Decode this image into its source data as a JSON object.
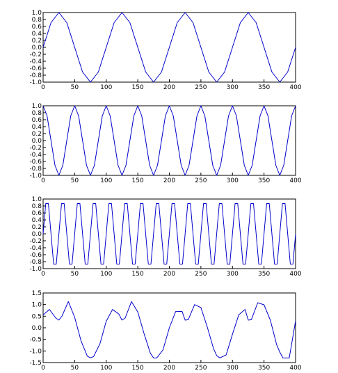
{
  "chart_data": [
    {
      "type": "line",
      "title": "",
      "xlabel": "",
      "ylabel": "",
      "xlim": [
        0,
        400
      ],
      "ylim": [
        -1.0,
        1.0
      ],
      "xticks": [
        0,
        50,
        100,
        150,
        200,
        250,
        300,
        350,
        400
      ],
      "xtick_labels": [
        "0",
        "50",
        "100",
        "150",
        "200",
        "250",
        "300",
        "350",
        "400"
      ],
      "yticks": [
        -1.0,
        -0.8,
        -0.6,
        -0.4,
        -0.2,
        0.0,
        0.2,
        0.4,
        0.6,
        0.8,
        1.0
      ],
      "ytick_labels": [
        "-1.0",
        "-0.8",
        "-0.6",
        "-0.4",
        "-0.2",
        "0.0",
        "0.2",
        "0.4",
        "0.6",
        "0.8",
        "1.0"
      ],
      "grid": false,
      "color": "#0000cc",
      "x": [
        0,
        12.5,
        25,
        37.5,
        50,
        62.5,
        75,
        87.5,
        100,
        112.5,
        125,
        137.5,
        150,
        162.5,
        175,
        187.5,
        200,
        212.5,
        225,
        237.5,
        250,
        262.5,
        275,
        287.5,
        300,
        312.5,
        325,
        337.5,
        350,
        362.5,
        375,
        387.5,
        400
      ],
      "series": [
        {
          "values": [
            0,
            0.71,
            1,
            0.71,
            0,
            -0.71,
            -1,
            -0.71,
            0,
            0.71,
            1,
            0.71,
            0,
            -0.71,
            -1,
            -0.71,
            0,
            0.71,
            1,
            0.71,
            0,
            -0.71,
            -1,
            -0.71,
            0,
            0.71,
            1,
            0.71,
            0,
            -0.71,
            -1,
            -0.71,
            0
          ]
        }
      ]
    },
    {
      "type": "line",
      "title": "",
      "xlabel": "",
      "ylabel": "",
      "xlim": [
        0,
        400
      ],
      "ylim": [
        -1.0,
        1.0
      ],
      "xticks": [
        0,
        50,
        100,
        150,
        200,
        250,
        300,
        350,
        400
      ],
      "xtick_labels": [
        "0",
        "50",
        "100",
        "150",
        "200",
        "250",
        "300",
        "350",
        "400"
      ],
      "yticks": [
        -1.0,
        -0.8,
        -0.6,
        -0.4,
        -0.2,
        0.0,
        0.2,
        0.4,
        0.6,
        0.8,
        1.0
      ],
      "ytick_labels": [
        "-1.0",
        "-0.8",
        "-0.6",
        "-0.4",
        "-0.2",
        "0.0",
        "0.2",
        "0.4",
        "0.6",
        "0.8",
        "1.0"
      ],
      "grid": false,
      "color": "#0000cc",
      "x": [
        0,
        6.25,
        12.5,
        18.75,
        25,
        31.25,
        37.5,
        43.75,
        50,
        56.25,
        62.5,
        68.75,
        75,
        81.25,
        87.5,
        93.75,
        100,
        106.25,
        112.5,
        118.75,
        125,
        131.25,
        137.5,
        143.75,
        150,
        156.25,
        162.5,
        168.75,
        175,
        181.25,
        187.5,
        193.75,
        200,
        206.25,
        212.5,
        218.75,
        225,
        231.25,
        237.5,
        243.75,
        250,
        256.25,
        262.5,
        268.75,
        275,
        281.25,
        287.5,
        293.75,
        300,
        306.25,
        312.5,
        318.75,
        325,
        331.25,
        337.5,
        343.75,
        350,
        356.25,
        362.5,
        368.75,
        375,
        381.25,
        387.5,
        393.75,
        400
      ],
      "series": [
        {
          "values": [
            1,
            0.71,
            0,
            -0.71,
            -1,
            -0.71,
            0,
            0.71,
            1,
            0.71,
            0,
            -0.71,
            -1,
            -0.71,
            0,
            0.71,
            1,
            0.71,
            0,
            -0.71,
            -1,
            -0.71,
            0,
            0.71,
            1,
            0.71,
            0,
            -0.71,
            -1,
            -0.71,
            0,
            0.71,
            1,
            0.71,
            0,
            -0.71,
            -1,
            -0.71,
            0,
            0.71,
            1,
            0.71,
            0,
            -0.71,
            -1,
            -0.71,
            0,
            0.71,
            1,
            0.71,
            0,
            -0.71,
            -1,
            -0.71,
            0,
            0.71,
            1,
            0.71,
            0,
            -0.71,
            -1,
            -0.71,
            0,
            0.71,
            1
          ]
        }
      ]
    },
    {
      "type": "line",
      "title": "",
      "xlabel": "",
      "ylabel": "",
      "xlim": [
        0,
        400
      ],
      "ylim": [
        -1.0,
        1.0
      ],
      "xticks": [
        0,
        50,
        100,
        150,
        200,
        250,
        300,
        350,
        400
      ],
      "xtick_labels": [
        "0",
        "50",
        "100",
        "150",
        "200",
        "250",
        "300",
        "350",
        "400"
      ],
      "yticks": [
        -1.0,
        -0.8,
        -0.6,
        -0.4,
        -0.2,
        0.0,
        0.2,
        0.4,
        0.6,
        0.8,
        1.0
      ],
      "ytick_labels": [
        "-1.0",
        "-0.8",
        "-0.6",
        "-0.4",
        "-0.2",
        "0.0",
        "0.2",
        "0.4",
        "0.6",
        "0.8",
        "1.0"
      ],
      "grid": false,
      "color": "#0000cc",
      "x": [
        0,
        4.17,
        8.33,
        12.5,
        16.67,
        20.83,
        25,
        29.17,
        33.33,
        37.5,
        41.67,
        45.83,
        50,
        54.17,
        58.33,
        62.5,
        66.67,
        70.83,
        75,
        79.17,
        83.33,
        87.5,
        91.67,
        95.83,
        100,
        104.17,
        108.33,
        112.5,
        116.67,
        120.83,
        125,
        129.17,
        133.33,
        137.5,
        141.67,
        145.83,
        150,
        154.17,
        158.33,
        162.5,
        166.67,
        170.83,
        175,
        179.17,
        183.33,
        187.5,
        191.67,
        195.83,
        200,
        204.17,
        208.33,
        212.5,
        216.67,
        220.83,
        225,
        229.17,
        233.33,
        237.5,
        241.67,
        245.83,
        250,
        254.17,
        258.33,
        262.5,
        266.67,
        270.83,
        275,
        279.17,
        283.33,
        287.5,
        291.67,
        295.83,
        300,
        304.17,
        308.33,
        312.5,
        316.67,
        320.83,
        325,
        329.17,
        333.33,
        337.5,
        341.67,
        345.83,
        350,
        354.17,
        358.33,
        362.5,
        366.67,
        370.83,
        375,
        379.17,
        383.33,
        387.5,
        391.67,
        395.83,
        400
      ],
      "series": [
        {
          "values": [
            0,
            0.87,
            0.87,
            0,
            -0.87,
            -0.87,
            0,
            0.87,
            0.87,
            0,
            -0.87,
            -0.87,
            0,
            0.87,
            0.87,
            0,
            -0.87,
            -0.87,
            0,
            0.87,
            0.87,
            0,
            -0.87,
            -0.87,
            0,
            0.87,
            0.87,
            0,
            -0.87,
            -0.87,
            0,
            0.87,
            0.87,
            0,
            -0.87,
            -0.87,
            0,
            0.87,
            0.87,
            0,
            -0.87,
            -0.87,
            0,
            0.87,
            0.87,
            0,
            -0.87,
            -0.87,
            0,
            0.87,
            0.87,
            0,
            -0.87,
            -0.87,
            0,
            0.87,
            0.87,
            0,
            -0.87,
            -0.87,
            0,
            0.87,
            0.87,
            0,
            -0.87,
            -0.87,
            0,
            0.87,
            0.87,
            0,
            -0.87,
            -0.87,
            0,
            0.87,
            0.87,
            0,
            -0.87,
            -0.87,
            0,
            0.87,
            0.87,
            0,
            -0.87,
            -0.87,
            0,
            0.87,
            0.87,
            0,
            -0.87,
            -0.87,
            0,
            0.87,
            0.87,
            0,
            -0.87,
            -0.87,
            0
          ]
        }
      ]
    },
    {
      "type": "line",
      "title": "",
      "xlabel": "",
      "ylabel": "",
      "xlim": [
        0,
        400
      ],
      "ylim": [
        -1.5,
        1.5
      ],
      "xticks": [
        0,
        50,
        100,
        150,
        200,
        250,
        300,
        350,
        400
      ],
      "xtick_labels": [
        "0",
        "50",
        "100",
        "150",
        "200",
        "250",
        "300",
        "350",
        "400"
      ],
      "yticks": [
        -1.5,
        -1.0,
        -0.5,
        0.0,
        0.5,
        1.0,
        1.5
      ],
      "ytick_labels": [
        "-1.5",
        "-1.0",
        "-0.5",
        "0.0",
        "0.5",
        "1.0",
        "1.5"
      ],
      "grid": false,
      "color": "#0000cc",
      "x": [
        0,
        10,
        20,
        25,
        30,
        40,
        50,
        60,
        70,
        75,
        80,
        90,
        100,
        110,
        120,
        125,
        130,
        140,
        150,
        160,
        170,
        175,
        180,
        190,
        200,
        210,
        220,
        225,
        230,
        240,
        250,
        260,
        270,
        275,
        280,
        290,
        300,
        310,
        320,
        325,
        330,
        340,
        350,
        360,
        370,
        375,
        380,
        390,
        400
      ],
      "series": [
        {
          "values": [
            0.55,
            0.79,
            0.42,
            0.33,
            0.51,
            1.13,
            0.45,
            -0.56,
            -1.22,
            -1.3,
            -1.24,
            -0.69,
            0.28,
            0.79,
            0.59,
            0.33,
            0.42,
            1.13,
            0.68,
            -0.26,
            -1.1,
            -1.3,
            -1.3,
            -0.95,
            0,
            0.7,
            0.71,
            0.33,
            0.35,
            1.0,
            0.87,
            0.04,
            -0.9,
            -1.2,
            -1.3,
            -1.17,
            -0.28,
            0.56,
            0.79,
            0.33,
            0.35,
            1.08,
            0.99,
            0.33,
            -0.73,
            -1.05,
            -1.3,
            -1.3,
            0.3
          ]
        }
      ]
    }
  ]
}
